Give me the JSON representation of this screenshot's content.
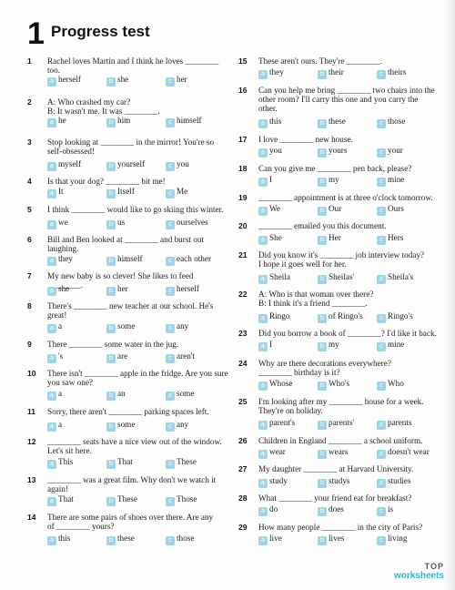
{
  "header": {
    "number": "1",
    "title": "Progress test"
  },
  "questions": [
    {
      "num": "1",
      "text": "Rachel loves Martin and I think he loves ________\ntoo.",
      "options": [
        {
          "letter": "a",
          "text": "herself"
        },
        {
          "letter": "b",
          "text": "she"
        },
        {
          "letter": "c",
          "text": "her"
        }
      ]
    },
    {
      "num": "2",
      "text": "A: Who crashed my car?\nB: It wasn't me. It was ________.",
      "options": [
        {
          "letter": "a",
          "text": "he"
        },
        {
          "letter": "b",
          "text": "him"
        },
        {
          "letter": "c",
          "text": "himself"
        }
      ]
    },
    {
      "num": "3",
      "text": "Stop looking at ________ in the mirror! You're so\nself-obsessed!",
      "options": [
        {
          "letter": "a",
          "text": "myself"
        },
        {
          "letter": "b",
          "text": "yourself"
        },
        {
          "letter": "c",
          "text": "you"
        }
      ]
    },
    {
      "num": "4",
      "text": "Is that your dog? ________ bit me!",
      "options": [
        {
          "letter": "a",
          "text": "It"
        },
        {
          "letter": "b",
          "text": "Itself"
        },
        {
          "letter": "c",
          "text": "Me"
        }
      ]
    },
    {
      "num": "5",
      "text": "I think ________ would like to go skiing this winter.",
      "options": [
        {
          "letter": "a",
          "text": "we"
        },
        {
          "letter": "b",
          "text": "us"
        },
        {
          "letter": "c",
          "text": "ourselves"
        }
      ]
    },
    {
      "num": "6",
      "text": "Bill and Ben looked at ________ and burst out\nlaughing.",
      "options": [
        {
          "letter": "a",
          "text": "they"
        },
        {
          "letter": "b",
          "text": "himself"
        },
        {
          "letter": "c",
          "text": "each other"
        }
      ]
    },
    {
      "num": "7",
      "text": "My new baby is so clever! She likes to feed ________.",
      "options": [
        {
          "letter": "a",
          "text": "she"
        },
        {
          "letter": "b",
          "text": "her"
        },
        {
          "letter": "c",
          "text": "herself"
        }
      ]
    },
    {
      "num": "8",
      "text": "There's ________ new teacher at our school. He's\ngreat!",
      "options": [
        {
          "letter": "a",
          "text": "a"
        },
        {
          "letter": "b",
          "text": "some"
        },
        {
          "letter": "c",
          "text": "any"
        }
      ]
    },
    {
      "num": "9",
      "text": "There ________ some water in the jug.",
      "options": [
        {
          "letter": "a",
          "text": "'s"
        },
        {
          "letter": "b",
          "text": "are"
        },
        {
          "letter": "c",
          "text": "aren't"
        }
      ]
    },
    {
      "num": "10",
      "text": "There isn't ________ apple in the fridge. Are you sure\nyou saw one?",
      "options": [
        {
          "letter": "a",
          "text": "a"
        },
        {
          "letter": "b",
          "text": "an"
        },
        {
          "letter": "c",
          "text": "some"
        }
      ]
    },
    {
      "num": "11",
      "text": "Sorry, there aren't ________ parking spaces left.",
      "options": [
        {
          "letter": "a",
          "text": "a"
        },
        {
          "letter": "b",
          "text": "some"
        },
        {
          "letter": "c",
          "text": "any"
        }
      ]
    },
    {
      "num": "12",
      "text": "________ seats have a nice view out of the window.\nLet's sit here.",
      "options": [
        {
          "letter": "a",
          "text": "This"
        },
        {
          "letter": "b",
          "text": "That"
        },
        {
          "letter": "c",
          "text": "These"
        }
      ]
    },
    {
      "num": "13",
      "text": "________ was a great film. Why don't we watch it\nagain!",
      "options": [
        {
          "letter": "a",
          "text": "That"
        },
        {
          "letter": "b",
          "text": "These"
        },
        {
          "letter": "c",
          "text": "Those"
        }
      ]
    },
    {
      "num": "14",
      "text": "There are some pairs of shoes over there. Are any\nof ________ yours?",
      "options": [
        {
          "letter": "a",
          "text": "this"
        },
        {
          "letter": "b",
          "text": "these"
        },
        {
          "letter": "c",
          "text": "those"
        }
      ]
    },
    {
      "num": "15",
      "text": "These aren't ours. They're ________.",
      "options": [
        {
          "letter": "a",
          "text": "they"
        },
        {
          "letter": "b",
          "text": "their"
        },
        {
          "letter": "c",
          "text": "theirs"
        }
      ]
    },
    {
      "num": "16",
      "text": "Can you help me bring ________ two chairs into the\nother room? I'll carry this one and you carry the\nother.",
      "options": [
        {
          "letter": "a",
          "text": "this"
        },
        {
          "letter": "b",
          "text": "these"
        },
        {
          "letter": "c",
          "text": "those"
        }
      ]
    },
    {
      "num": "17",
      "text": "I love ________ new house.",
      "options": [
        {
          "letter": "a",
          "text": "you"
        },
        {
          "letter": "b",
          "text": "yours"
        },
        {
          "letter": "c",
          "text": "your"
        }
      ]
    },
    {
      "num": "18",
      "text": "Can you give me ________ pen back, please?",
      "options": [
        {
          "letter": "a",
          "text": "I"
        },
        {
          "letter": "b",
          "text": "my"
        },
        {
          "letter": "c",
          "text": "mine"
        }
      ]
    },
    {
      "num": "19",
      "text": "________ appointment is at three o'clock tomorrow.",
      "options": [
        {
          "letter": "a",
          "text": "We"
        },
        {
          "letter": "b",
          "text": "Our"
        },
        {
          "letter": "c",
          "text": "Ours"
        }
      ]
    },
    {
      "num": "20",
      "text": "________ emailed you this document.",
      "options": [
        {
          "letter": "a",
          "text": "She"
        },
        {
          "letter": "b",
          "text": "Her"
        },
        {
          "letter": "c",
          "text": "Hers"
        }
      ]
    },
    {
      "num": "21",
      "text": "Did you know it's ________ job interview today?\nI hope it goes well for her.",
      "options": [
        {
          "letter": "a",
          "text": "Sheila"
        },
        {
          "letter": "b",
          "text": "Sheilas'"
        },
        {
          "letter": "c",
          "text": "Sheila's"
        }
      ]
    },
    {
      "num": "22",
      "text": "A: Who is that woman over there?\nB: I think it's a friend ________.",
      "options": [
        {
          "letter": "a",
          "text": "Ringo"
        },
        {
          "letter": "b",
          "text": "of Ringo's"
        },
        {
          "letter": "c",
          "text": "Ringo's"
        }
      ]
    },
    {
      "num": "23",
      "text": "Did you borrow a book of ________? I'd like it back.",
      "options": [
        {
          "letter": "a",
          "text": "I"
        },
        {
          "letter": "b",
          "text": "my"
        },
        {
          "letter": "c",
          "text": "mine"
        }
      ]
    },
    {
      "num": "24",
      "text": "Why are there decorations everywhere?\n________ birthday is it?",
      "options": [
        {
          "letter": "a",
          "text": "Whose"
        },
        {
          "letter": "b",
          "text": "Who's"
        },
        {
          "letter": "c",
          "text": "Who"
        }
      ]
    },
    {
      "num": "25",
      "text": "I'm looking after my ________ house for a week.\nThey're on holiday.",
      "options": [
        {
          "letter": "a",
          "text": "parent's"
        },
        {
          "letter": "b",
          "text": "parents'"
        },
        {
          "letter": "c",
          "text": "parents"
        }
      ]
    },
    {
      "num": "26",
      "text": "Children in England ________ a school uniform.",
      "options": [
        {
          "letter": "a",
          "text": "wear"
        },
        {
          "letter": "b",
          "text": "wears"
        },
        {
          "letter": "c",
          "text": "doesn't wear"
        }
      ]
    },
    {
      "num": "27",
      "text": "My daughter ________ at Harvard University.",
      "options": [
        {
          "letter": "a",
          "text": "study"
        },
        {
          "letter": "b",
          "text": "studys"
        },
        {
          "letter": "c",
          "text": "studies"
        }
      ]
    },
    {
      "num": "28",
      "text": "What ________ your friend eat for breakfast?",
      "options": [
        {
          "letter": "a",
          "text": "do"
        },
        {
          "letter": "b",
          "text": "does"
        },
        {
          "letter": "c",
          "text": "is"
        }
      ]
    },
    {
      "num": "29",
      "text": "How many people ________ in the city of Paris?",
      "options": [
        {
          "letter": "a",
          "text": "live"
        },
        {
          "letter": "b",
          "text": "lives"
        },
        {
          "letter": "c",
          "text": "living"
        }
      ]
    }
  ],
  "logo": {
    "line1": "TOP",
    "line2": "worksheets"
  },
  "colors": {
    "answer_box": "#9fd3e6",
    "logo_accent": "#3bb3c9"
  }
}
